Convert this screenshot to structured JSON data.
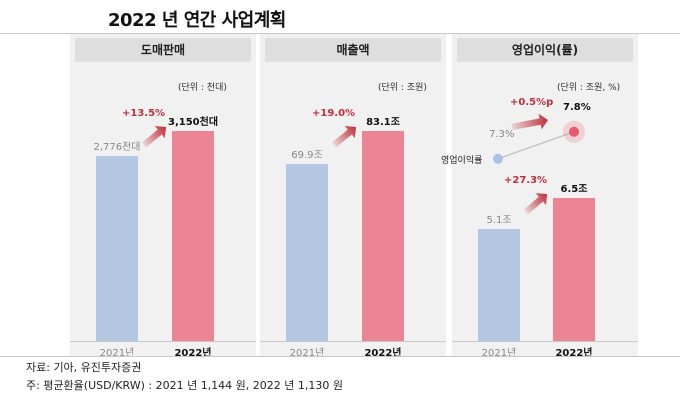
{
  "title": "2022 년 연간 사업계획",
  "colors": {
    "bar_2021": "#b4c8e4",
    "bar_2022": "#eb8593",
    "growth": "#c0303a",
    "dot": "#a9c2e6",
    "highlight": "#e85a6e"
  },
  "chart_data": [
    {
      "type": "bar",
      "title": "도매판매",
      "unit": "(단위 : 천대)",
      "categories": [
        "2021년",
        "2022년"
      ],
      "values": [
        2776,
        3150
      ],
      "value_labels": [
        "2,776천대",
        "3,150천대"
      ],
      "growth_label": "+13.5%",
      "ylim": [
        0,
        3600
      ]
    },
    {
      "type": "bar",
      "title": "매출액",
      "unit": "(단위 : 조원)",
      "categories": [
        "2021년",
        "2022년"
      ],
      "values": [
        69.9,
        83.1
      ],
      "value_labels": [
        "69.9조",
        "83.1조"
      ],
      "growth_label": "+19.0%",
      "ylim": [
        0,
        95
      ]
    },
    {
      "type": "bar",
      "title": "영업이익(률)",
      "unit": "(단위 : 조원, %)",
      "categories": [
        "2021년",
        "2022년"
      ],
      "values": [
        5.1,
        6.5
      ],
      "value_labels": [
        "5.1조",
        "6.5조"
      ],
      "growth_label": "+27.3%",
      "ylim": [
        0,
        10.9
      ],
      "margin_series": {
        "name": "영업이익률",
        "type": "line",
        "values": [
          7.3,
          7.8
        ],
        "value_labels": [
          "7.3%",
          "7.8%"
        ],
        "growth_label": "+0.5%p"
      }
    }
  ],
  "footer": {
    "source": "자료: 기아, 유진투자증권",
    "note": "주: 평균환율(USD/KRW) : 2021 년 1,144 원, 2022 년 1,130 원"
  }
}
